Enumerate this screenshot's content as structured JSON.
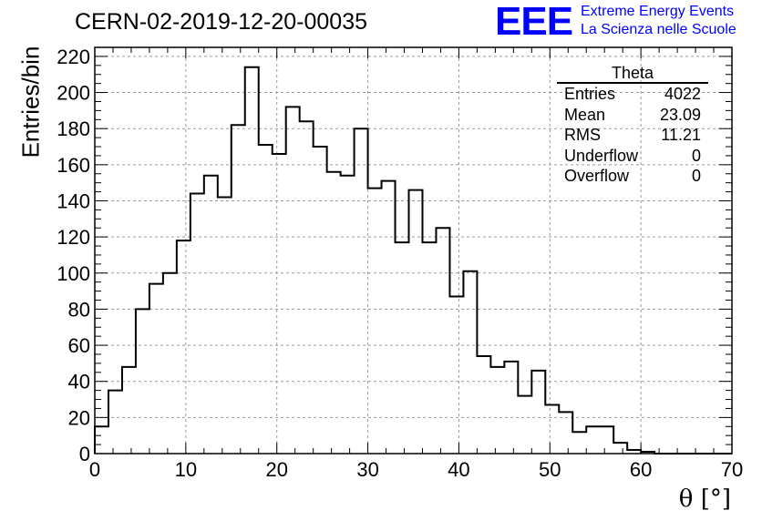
{
  "header": {
    "run_title": "CERN-02-2019-12-20-00035",
    "logo_text": "EEE",
    "logo_line1": "Extreme Energy Events",
    "logo_line2": "La Scienza nelle Scuole"
  },
  "stats_box": {
    "title": "Theta",
    "rows": [
      {
        "label": "Entries",
        "value": "4022"
      },
      {
        "label": "Mean",
        "value": "23.09"
      },
      {
        "label": "RMS",
        "value": "11.21"
      },
      {
        "label": "Underflow",
        "value": "0"
      },
      {
        "label": "Overflow",
        "value": "0"
      }
    ]
  },
  "chart_data": {
    "type": "bar",
    "histogram": true,
    "title": "",
    "xlabel": "θ [°]",
    "ylabel": "Entries/bin",
    "xlim": [
      0,
      70
    ],
    "ylim": [
      0,
      225
    ],
    "x_ticks": [
      0,
      10,
      20,
      30,
      40,
      50,
      60,
      70
    ],
    "y_ticks": [
      0,
      20,
      40,
      60,
      80,
      100,
      120,
      140,
      160,
      180,
      200,
      220
    ],
    "grid": true,
    "bin_width": 1.5,
    "bin_edges_start": 0,
    "values": [
      15,
      35,
      48,
      80,
      94,
      100,
      118,
      144,
      154,
      142,
      182,
      214,
      171,
      166,
      192,
      184,
      170,
      156,
      154,
      180,
      147,
      151,
      117,
      146,
      117,
      125,
      87,
      101,
      54,
      48,
      51,
      32,
      46,
      27,
      23,
      12,
      15,
      15,
      6,
      2,
      1,
      0,
      0,
      0,
      0,
      0,
      0
    ],
    "colors": {
      "line": "#000000",
      "grid": "#9a9a9a",
      "frame": "#000000"
    }
  }
}
